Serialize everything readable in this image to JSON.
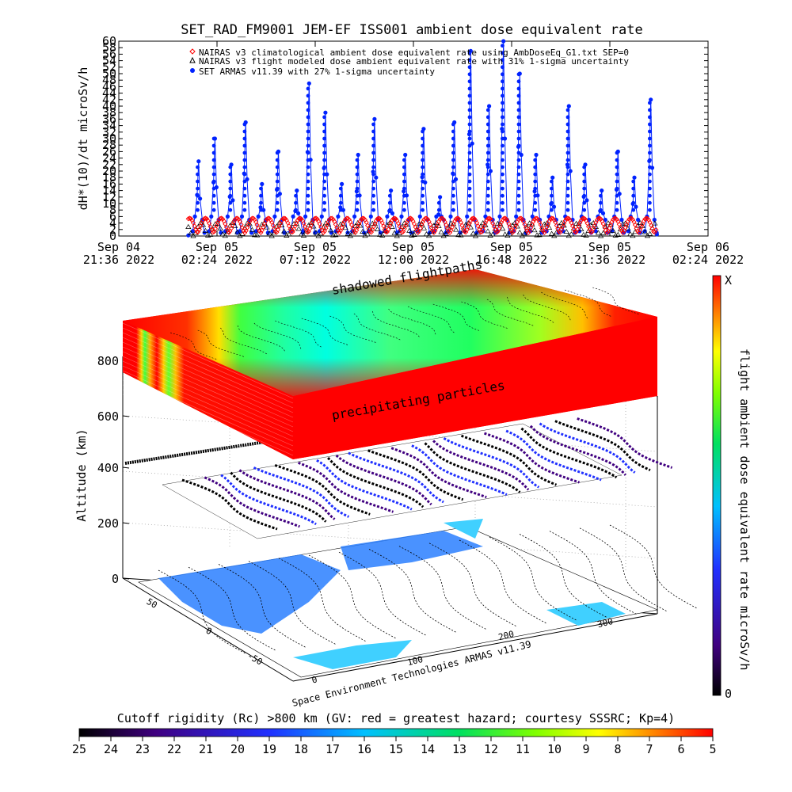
{
  "chart_data": [
    {
      "type": "scatter",
      "title": "SET_RAD_FM9001  JEM-EF ISS001 ambient dose equivalent rate",
      "ylabel": "dH*(10)/dt microSv/h",
      "ylim": [
        0,
        60
      ],
      "yticks": [
        "0",
        "2",
        "4",
        "6",
        "8",
        "10",
        "12",
        "14",
        "16",
        "18",
        "20",
        "22",
        "24",
        "26",
        "28",
        "30",
        "32",
        "34",
        "36",
        "38",
        "40",
        "42",
        "44",
        "46",
        "48",
        "50",
        "52",
        "54",
        "56",
        "58",
        "60"
      ],
      "xticks": [
        {
          "day": "Sep 04",
          "time": "21:36 2022"
        },
        {
          "day": "Sep 05",
          "time": "02:24 2022"
        },
        {
          "day": "Sep 05",
          "time": "07:12 2022"
        },
        {
          "day": "Sep 05",
          "time": "12:00 2022"
        },
        {
          "day": "Sep 05",
          "time": "16:48 2022"
        },
        {
          "day": "Sep 05",
          "time": "21:36 2022"
        },
        {
          "day": "Sep 06",
          "time": "02:24 2022"
        }
      ],
      "x_hours_range": [
        0,
        28.8
      ],
      "series": [
        {
          "name": "NAIRAS v3 climatological ambient dose equivalent rate using AmbDoseEq_G1.txt SEP=0",
          "marker": "diamond",
          "color": "#ff0000",
          "approx_profile": {
            "x_start_h": 3.4,
            "x_end_h": 26.3,
            "period_h": 0.77,
            "min": 1,
            "max": 5.5
          }
        },
        {
          "name": "NAIRAS v3 flight modeled dose ambient equivalent rate with 31% 1-sigma uncertainty",
          "marker": "triangle",
          "color": "#000000",
          "approx_profile": {
            "x_start_h": 3.4,
            "x_end_h": 26.3,
            "min": 0,
            "max": 4
          }
        },
        {
          "name": "SET ARMAS v11.39 with 27% 1-sigma uncertainty",
          "marker": "circle",
          "color": "#0022ff",
          "spikes": [
            {
              "x_h": 3.9,
              "y": 23
            },
            {
              "x_h": 4.7,
              "y": 30
            },
            {
              "x_h": 5.5,
              "y": 22
            },
            {
              "x_h": 6.2,
              "y": 35
            },
            {
              "x_h": 7.0,
              "y": 16
            },
            {
              "x_h": 7.8,
              "y": 26
            },
            {
              "x_h": 8.7,
              "y": 14
            },
            {
              "x_h": 9.3,
              "y": 47
            },
            {
              "x_h": 10.1,
              "y": 38
            },
            {
              "x_h": 10.9,
              "y": 16
            },
            {
              "x_h": 11.7,
              "y": 25
            },
            {
              "x_h": 12.5,
              "y": 36
            },
            {
              "x_h": 13.3,
              "y": 14
            },
            {
              "x_h": 14.0,
              "y": 25
            },
            {
              "x_h": 14.9,
              "y": 33
            },
            {
              "x_h": 15.7,
              "y": 12
            },
            {
              "x_h": 16.4,
              "y": 35
            },
            {
              "x_h": 17.2,
              "y": 57
            },
            {
              "x_h": 18.1,
              "y": 40
            },
            {
              "x_h": 18.8,
              "y": 60
            },
            {
              "x_h": 19.6,
              "y": 50
            },
            {
              "x_h": 20.4,
              "y": 25
            },
            {
              "x_h": 21.2,
              "y": 18
            },
            {
              "x_h": 22.0,
              "y": 40
            },
            {
              "x_h": 22.8,
              "y": 22
            },
            {
              "x_h": 23.6,
              "y": 14
            },
            {
              "x_h": 24.4,
              "y": 26
            },
            {
              "x_h": 25.2,
              "y": 18
            },
            {
              "x_h": 26.0,
              "y": 42
            }
          ]
        }
      ]
    },
    {
      "type": "heatmap",
      "ylabel": "Altitude (km)",
      "zticks": [
        "0",
        "200",
        "400",
        "600",
        "800"
      ],
      "lat_ticks": [
        "50",
        "0",
        "-50"
      ],
      "lon_ticks": [
        "0",
        "100",
        "200",
        "300"
      ],
      "annotations": [
        "shadowed flightpaths",
        "precipitating particles"
      ],
      "credit": "Space Environment Technologies ARMAS v11.39"
    },
    {
      "type": "heatmap",
      "title": "flight ambient dose equivalent rate microSv/h",
      "colorbar_ticks": [
        "X",
        "0"
      ],
      "colors": [
        "#000000",
        "#400080",
        "#2030ff",
        "#00c0ff",
        "#00e060",
        "#80ff00",
        "#ffff00",
        "#ff8000",
        "#ff0000"
      ]
    },
    {
      "type": "heatmap",
      "title": "Cutoff rigidity (Rc) >800 km (GV: red = greatest hazard; courtesy SSSRC; Kp=4)",
      "colorbar_ticks": [
        "25",
        "24",
        "23",
        "22",
        "21",
        "20",
        "19",
        "18",
        "17",
        "16",
        "15",
        "14",
        "13",
        "12",
        "11",
        "10",
        "9",
        "8",
        "7",
        "6",
        "5"
      ],
      "colors": [
        "#000000",
        "#400080",
        "#2030ff",
        "#00c0ff",
        "#00e060",
        "#80ff00",
        "#ffff00",
        "#ff8000",
        "#ff0000"
      ]
    }
  ]
}
